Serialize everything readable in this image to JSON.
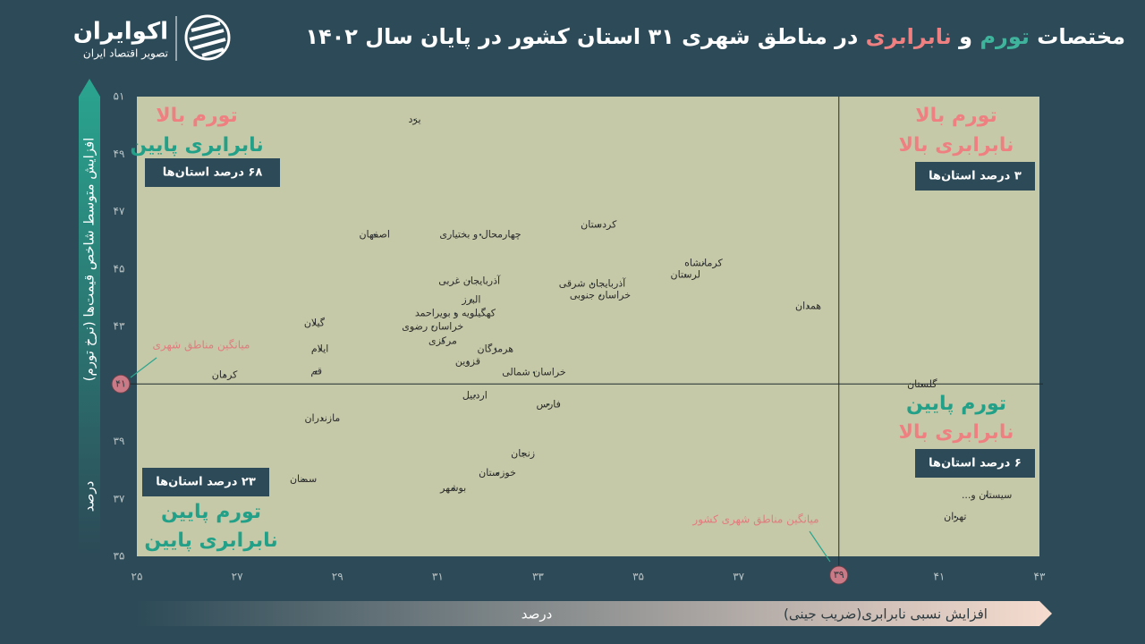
{
  "chart_data": {
    "type": "scatter",
    "title_parts": [
      {
        "text": "مختصات",
        "color": "#ffffff"
      },
      {
        "text": "تورم",
        "color": "#3fb39c"
      },
      {
        "text": "و",
        "color": "#ffffff"
      },
      {
        "text": "نابرابری",
        "color": "#ee8081"
      },
      {
        "text": "در مناطق شهری ۳۱ استان کشور در پایان سال ۱۴۰۲",
        "color": "#ffffff"
      }
    ],
    "brand": {
      "name": "اکوایران",
      "tagline": "تصویر اقتصاد ایران"
    },
    "y_axis_label": "افزایش متوسط شاخص قیمت‌ها (نرخ تورم)",
    "y_axis_unit": "درصد",
    "x_axis_label": "افزایش نسبی نابرابری(ضریب جینی)",
    "x_axis_unit": "درصد",
    "labels": [
      "یزد",
      "کردستان",
      "چهارمحال و بختیاری",
      "اصفهان",
      "کرمانشاه",
      "لرستان",
      "آذربایجان غربی",
      "آذربایجان شرقی",
      "خراسان جنوبی",
      "همدان",
      "البرز",
      "کهگیلویه و بویراحمد",
      "گیلان",
      "خراسان رضوی",
      "مرکزی",
      "هرمزگان",
      "ایلام",
      "قزوین",
      "خراسان شمالی",
      "قم",
      "کرمان",
      "گلستان",
      "اردبیل",
      "فارس",
      "مازندران",
      "زنجان",
      "خوزستان",
      "سمنان",
      "بوشهر",
      "سیستان و...",
      "تهران"
    ],
    "x": [
      30.54,
      34.21,
      31.85,
      29.74,
      36.3,
      35.94,
      31.63,
      34.08,
      34.24,
      38.39,
      31.67,
      31.35,
      28.54,
      30.9,
      31.1,
      32.15,
      28.65,
      31.6,
      32.92,
      28.58,
      26.75,
      40.66,
      31.74,
      33.21,
      28.7,
      32.7,
      32.19,
      28.32,
      31.31,
      41.95,
      41.32
    ],
    "values": [
      50.19,
      46.53,
      46.19,
      46.19,
      45.19,
      44.79,
      44.57,
      44.48,
      44.07,
      43.7,
      43.92,
      43.45,
      43.11,
      42.99,
      42.49,
      42.21,
      42.21,
      41.77,
      41.4,
      41.43,
      41.31,
      40.97,
      40.59,
      40.28,
      39.79,
      38.57,
      37.89,
      37.67,
      37.36,
      37.11,
      36.37
    ],
    "color": "#2b3a3f",
    "xlim": [
      25,
      43
    ],
    "ylim": [
      35,
      51
    ],
    "xticks": [
      {
        "value": 25,
        "label": "۲۵"
      },
      {
        "value": 27,
        "label": "۲۷"
      },
      {
        "value": 29,
        "label": "۲۹"
      },
      {
        "value": 31,
        "label": "۳۱"
      },
      {
        "value": 33,
        "label": "۳۳"
      },
      {
        "value": 35,
        "label": "۳۵"
      },
      {
        "value": 37,
        "label": "۳۷"
      },
      {
        "value": 39,
        "label": "۳۹"
      },
      {
        "value": 41,
        "label": "۴۱"
      },
      {
        "value": 43,
        "label": "۴۳"
      }
    ],
    "yticks": [
      {
        "value": 35,
        "label": "۳۵"
      },
      {
        "value": 37,
        "label": "۳۷"
      },
      {
        "value": 39,
        "label": "۳۹"
      },
      {
        "value": 41,
        "label": "۴۱"
      },
      {
        "value": 43,
        "label": "۴۳"
      },
      {
        "value": 45,
        "label": "۴۵"
      },
      {
        "value": 47,
        "label": "۴۷"
      },
      {
        "value": 49,
        "label": "۴۹"
      },
      {
        "value": 51,
        "label": "۵۱"
      }
    ],
    "x_mean": {
      "value": 39,
      "label": "۳۹",
      "text": "میانگین مناطق شهری کشور"
    },
    "y_mean": {
      "value": 41,
      "label": "۴۱",
      "text": "میانگین مناطق شهری"
    },
    "quadrants": {
      "top_left": {
        "inflation": "تورم بالا",
        "inequality": "نابرابری پایین",
        "share": "۶۸ درصد استان‌ها"
      },
      "top_right": {
        "inflation": "تورم بالا",
        "inequality": "نابرابری بالا",
        "share": "۳ درصد استان‌ها"
      },
      "bottom_right": {
        "inflation": "تورم پایین",
        "inequality": "نابرابری بالا",
        "share": "۶ درصد استان‌ها"
      },
      "bottom_left": {
        "inflation": "تورم پایین",
        "inequality": "نابرابری پایین",
        "share": "۲۳ درصد استان‌ها"
      }
    },
    "grid": false
  }
}
